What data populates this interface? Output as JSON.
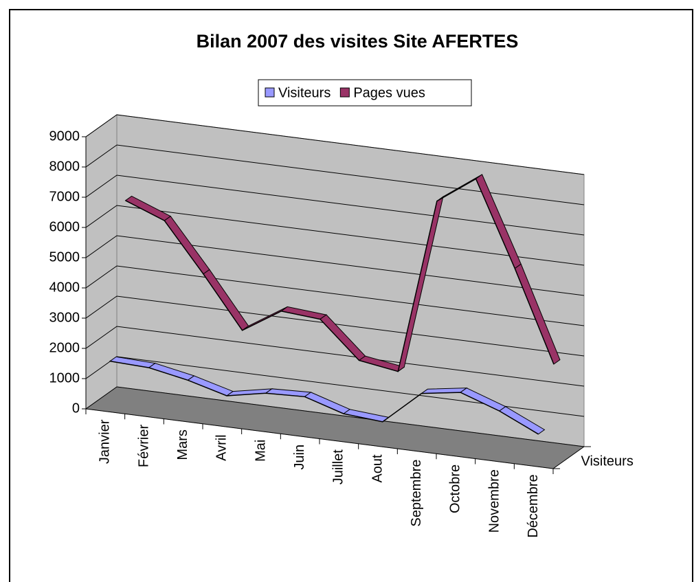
{
  "chart_data": {
    "type": "line3d",
    "title": "Bilan 2007 des visites Site AFERTES",
    "categories": [
      "Janvier",
      "Février",
      "Mars",
      "Avril",
      "Mai",
      "Juin",
      "Juillet",
      "Aout",
      "Septembre",
      "Octobre",
      "Novembre",
      "Décembre"
    ],
    "series": [
      {
        "name": "Visiteurs",
        "color": "#9999ff",
        "values": [
          1550,
          1500,
          1250,
          900,
          1150,
          1200,
          800,
          700,
          1800,
          2000,
          1550,
          950
        ]
      },
      {
        "name": "Pages vues",
        "color": "#993366",
        "values": [
          6500,
          6000,
          4400,
          2700,
          3500,
          3400,
          2200,
          2000,
          7800,
          8700,
          5900,
          2900
        ]
      }
    ],
    "ylim": [
      0,
      9000
    ],
    "yticks": [
      0,
      1000,
      2000,
      3000,
      4000,
      5000,
      6000,
      7000,
      8000,
      9000
    ],
    "grid": true,
    "legend": "top"
  }
}
